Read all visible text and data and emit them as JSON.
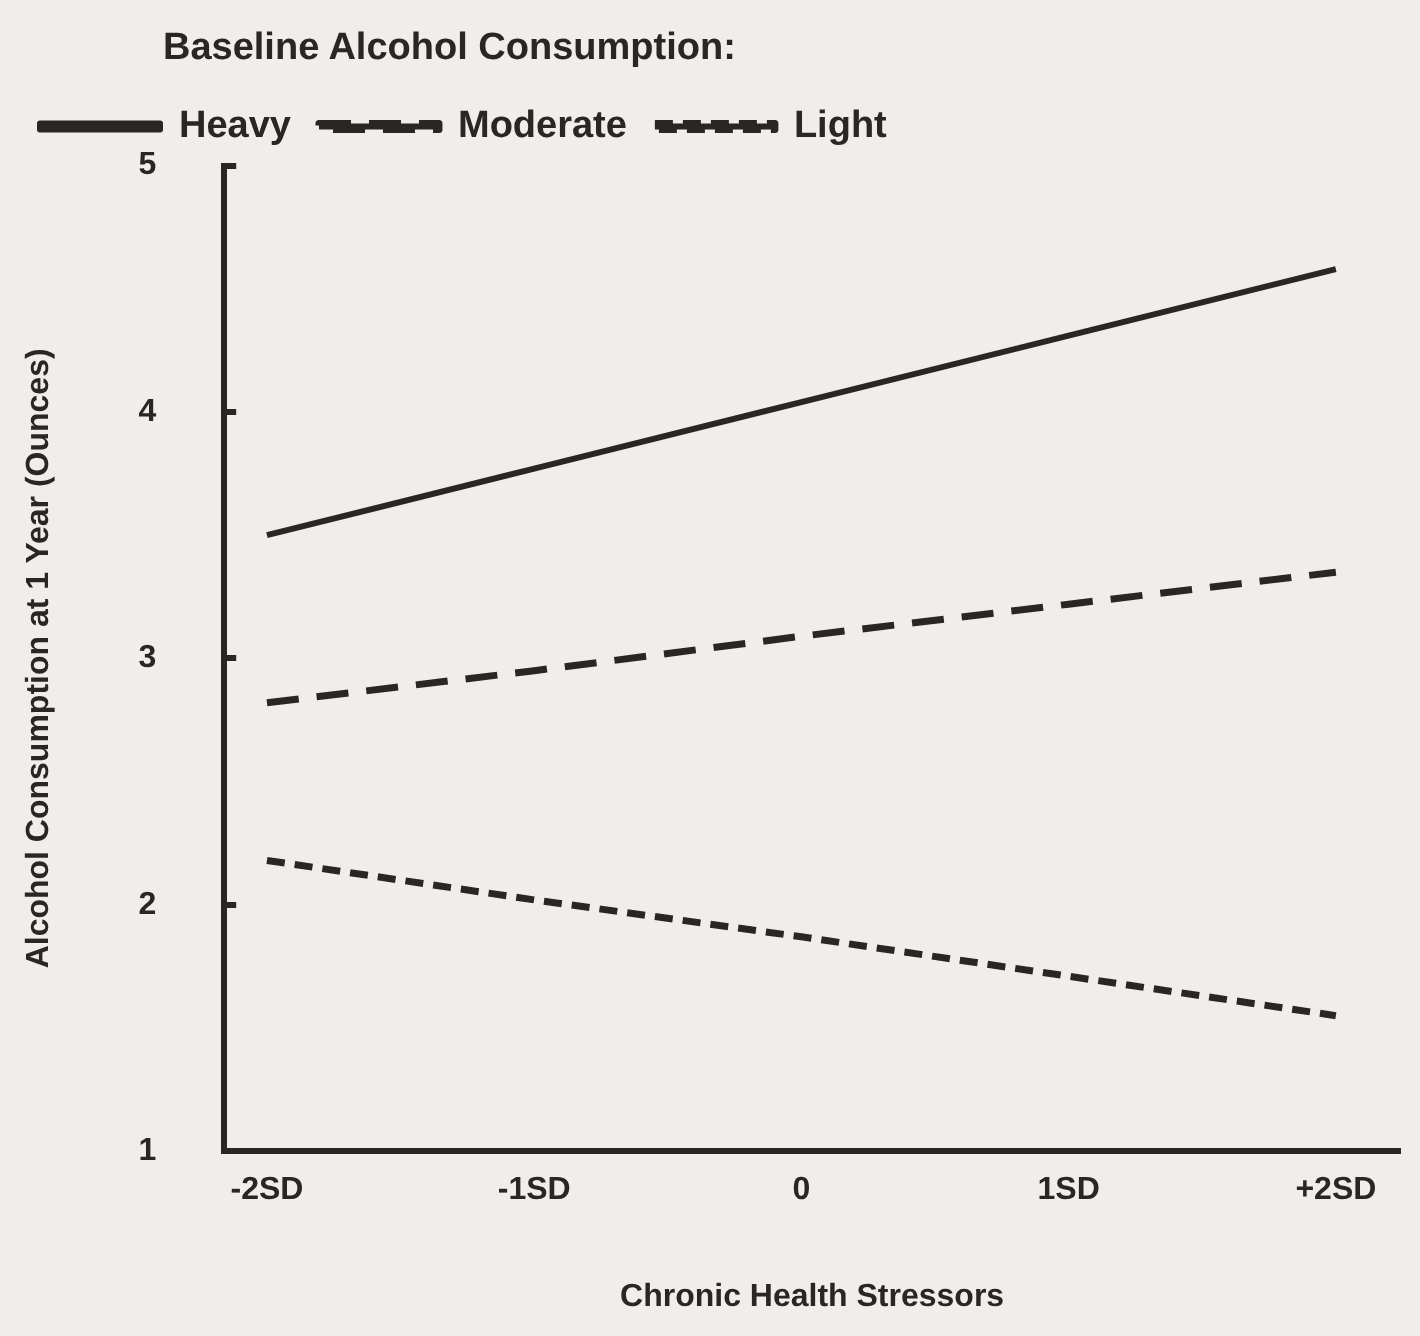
{
  "chart_data": {
    "type": "line",
    "xlabel": "Chronic Health Stressors",
    "ylabel": "Alcohol Consumption at 1 Year (Ounces)",
    "legend_title": "Baseline Alcohol Consumption:",
    "legend": "top left",
    "grid": false,
    "marker": "none",
    "categories": [
      "-2SD",
      "-1SD",
      "0",
      "1SD",
      "+2SD"
    ],
    "ylim": [
      1,
      5
    ],
    "yticks": [
      1,
      2,
      3,
      4,
      5
    ],
    "series": [
      {
        "name": "Heavy",
        "color": "#2b2626",
        "line_style": "solid",
        "values": [
          3.5,
          3.77,
          4.04,
          4.31,
          4.58
        ]
      },
      {
        "name": "Moderate",
        "color": "#2b2626",
        "line_style": "dashed",
        "values": [
          2.82,
          2.95,
          3.09,
          3.22,
          3.35
        ]
      },
      {
        "name": "Light",
        "color": "#2b2626",
        "line_style": "dotted",
        "values": [
          2.18,
          2.02,
          1.87,
          1.71,
          1.55
        ]
      }
    ]
  }
}
